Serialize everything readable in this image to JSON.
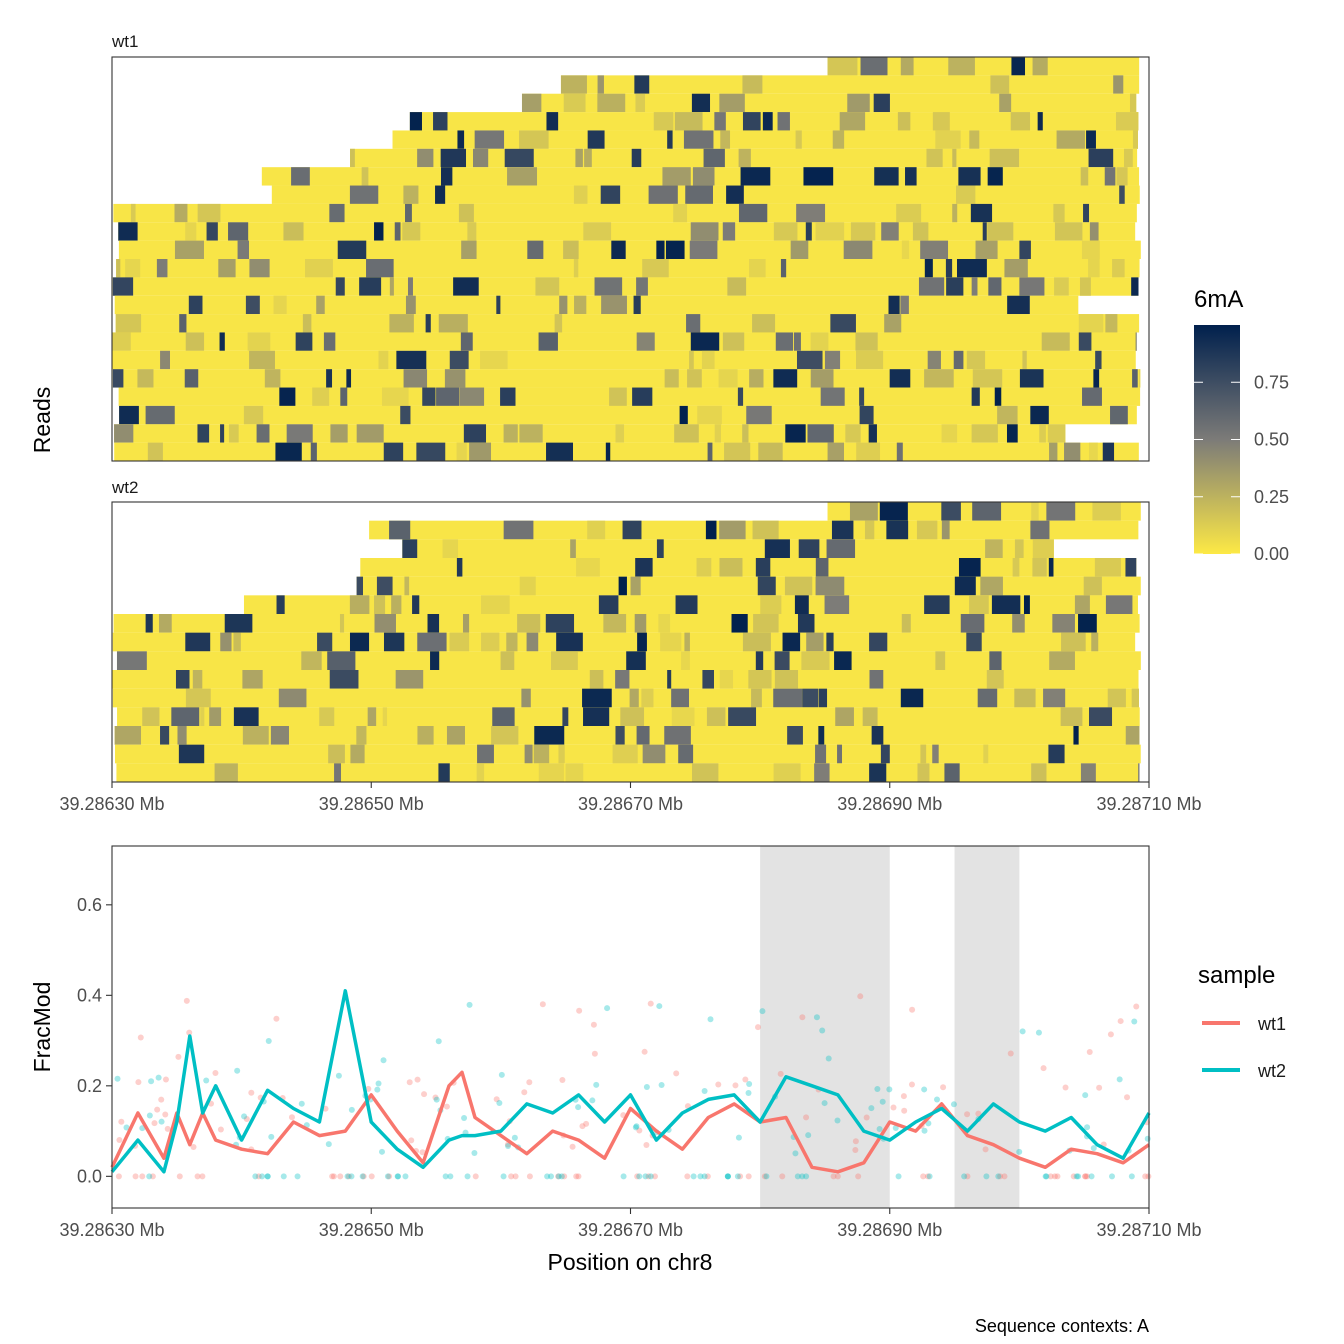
{
  "chart_data": [
    {
      "type": "heatmap",
      "facets": [
        {
          "label": "wt1",
          "read_count": 22
        },
        {
          "label": "wt2",
          "read_count": 15
        }
      ],
      "ylabel": "Reads",
      "x_tick_labels": [
        "39.28630 Mb",
        "39.28650 Mb",
        "39.28670 Mb",
        "39.28690 Mb",
        "39.28710 Mb"
      ],
      "x_ticks": [
        39.2863,
        39.2865,
        39.2867,
        39.2869,
        39.2871
      ],
      "xlim": [
        39.2863,
        39.2871
      ],
      "colorbar": {
        "title": "6mA",
        "tick_labels": [
          "0.75",
          "0.50",
          "0.25",
          "0.00"
        ],
        "ticks": [
          0.75,
          0.5,
          0.25,
          0.0
        ],
        "range": [
          0,
          1
        ],
        "low_color": "#fde945",
        "mid_color": "#7c7b78",
        "high_color": "#00204d"
      },
      "grid": false
    },
    {
      "type": "line",
      "xlabel": "Position on chr8",
      "ylabel": "FracMod",
      "x_tick_labels": [
        "39.28630 Mb",
        "39.28650 Mb",
        "39.28670 Mb",
        "39.28690 Mb",
        "39.28710 Mb"
      ],
      "x_ticks": [
        39.2863,
        39.2865,
        39.2867,
        39.2869,
        39.2871
      ],
      "y_tick_labels": [
        "0.0",
        "0.2",
        "0.4",
        "0.6"
      ],
      "y_ticks": [
        0.0,
        0.2,
        0.4,
        0.6
      ],
      "xlim": [
        39.2863,
        39.2871
      ],
      "ylim": [
        -0.07,
        0.73
      ],
      "highlight_regions": [
        [
          39.2868,
          39.2869
        ],
        [
          39.28695,
          39.287
        ]
      ],
      "legend_title": "sample",
      "legend_position": "right",
      "grid": false,
      "series": [
        {
          "name": "wt1",
          "color": "#f8766d",
          "x": [
            39.2863,
            39.28632,
            39.28634,
            39.28635,
            39.28636,
            39.28637,
            39.28638,
            39.2864,
            39.28642,
            39.28644,
            39.28646,
            39.28648,
            39.2865,
            39.28652,
            39.28654,
            39.28656,
            39.28657,
            39.28658,
            39.2866,
            39.28662,
            39.28664,
            39.28666,
            39.28668,
            39.2867,
            39.28672,
            39.28674,
            39.28676,
            39.28678,
            39.2868,
            39.28682,
            39.28684,
            39.28686,
            39.28688,
            39.2869,
            39.28692,
            39.28694,
            39.28696,
            39.28698,
            39.287,
            39.28702,
            39.28704,
            39.28706,
            39.28708,
            39.2871
          ],
          "y": [
            0.02,
            0.14,
            0.04,
            0.14,
            0.07,
            0.14,
            0.08,
            0.06,
            0.05,
            0.12,
            0.09,
            0.1,
            0.18,
            0.1,
            0.03,
            0.2,
            0.23,
            0.13,
            0.09,
            0.05,
            0.1,
            0.08,
            0.04,
            0.15,
            0.1,
            0.06,
            0.13,
            0.16,
            0.12,
            0.13,
            0.02,
            0.01,
            0.03,
            0.12,
            0.1,
            0.16,
            0.09,
            0.07,
            0.04,
            0.02,
            0.06,
            0.05,
            0.03,
            0.07
          ]
        },
        {
          "name": "wt2",
          "color": "#00bfc4",
          "x": [
            39.2863,
            39.28632,
            39.28634,
            39.28635,
            39.28636,
            39.28637,
            39.28638,
            39.2864,
            39.28642,
            39.28644,
            39.28646,
            39.28648,
            39.2865,
            39.28652,
            39.28654,
            39.28656,
            39.28657,
            39.28658,
            39.2866,
            39.28662,
            39.28664,
            39.28666,
            39.28668,
            39.2867,
            39.28672,
            39.28674,
            39.28676,
            39.28678,
            39.2868,
            39.28682,
            39.28684,
            39.28686,
            39.28688,
            39.2869,
            39.28692,
            39.28694,
            39.28696,
            39.28698,
            39.287,
            39.28702,
            39.28704,
            39.28706,
            39.28708,
            39.2871
          ],
          "y": [
            0.01,
            0.08,
            0.01,
            0.12,
            0.31,
            0.14,
            0.2,
            0.08,
            0.19,
            0.15,
            0.12,
            0.41,
            0.12,
            0.06,
            0.02,
            0.08,
            0.09,
            0.09,
            0.1,
            0.16,
            0.14,
            0.18,
            0.12,
            0.18,
            0.08,
            0.14,
            0.17,
            0.18,
            0.12,
            0.22,
            0.2,
            0.18,
            0.1,
            0.08,
            0.12,
            0.15,
            0.1,
            0.16,
            0.12,
            0.1,
            0.13,
            0.07,
            0.04,
            0.14
          ]
        }
      ]
    }
  ],
  "caption": "Sequence contexts: A"
}
